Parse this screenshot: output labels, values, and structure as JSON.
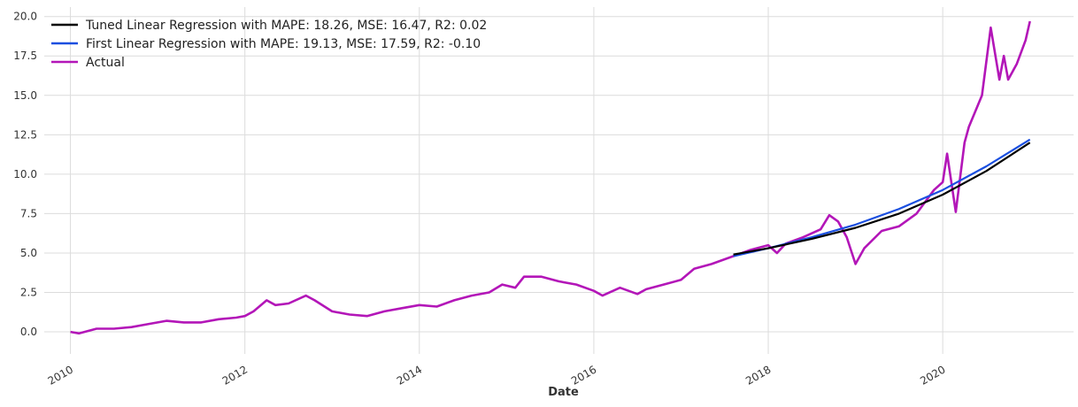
{
  "chart_data": {
    "type": "line",
    "title": "",
    "xlabel": "Date",
    "ylabel": "",
    "grid": true,
    "legend_position": "top-left",
    "xlim": [
      2009.7,
      2021.5
    ],
    "ylim": [
      -1.4,
      20.6
    ],
    "x_ticks": [
      2010,
      2012,
      2014,
      2016,
      2018,
      2020
    ],
    "x_tick_labels": [
      "2010",
      "2012",
      "2014",
      "2016",
      "2018",
      "2020"
    ],
    "y_ticks": [
      0,
      2.5,
      5,
      7.5,
      10,
      12.5,
      15,
      17.5,
      20
    ],
    "y_tick_labels": [
      "0.0",
      "2.5",
      "5.0",
      "7.5",
      "10.0",
      "12.5",
      "15.0",
      "17.5",
      "20.0"
    ],
    "series": [
      {
        "name": "Tuned Linear Regression with MAPE: 18.26, MSE: 16.47, R2: 0.02",
        "color": "#000000",
        "x": [
          2017.6,
          2018.0,
          2018.5,
          2019.0,
          2019.5,
          2020.0,
          2020.5,
          2021.0
        ],
        "y": [
          4.9,
          5.3,
          5.9,
          6.6,
          7.5,
          8.7,
          10.2,
          12.0
        ]
      },
      {
        "name": "First Linear Regression with MAPE: 19.13, MSE: 17.59, R2: -0.10",
        "color": "#1a4fe0",
        "x": [
          2017.6,
          2018.0,
          2018.5,
          2019.0,
          2019.5,
          2020.0,
          2020.5,
          2021.0
        ],
        "y": [
          4.8,
          5.3,
          6.0,
          6.8,
          7.8,
          9.0,
          10.5,
          12.2
        ]
      },
      {
        "name": "Actual",
        "color": "#b316b8",
        "x": [
          2010.0,
          2010.1,
          2010.3,
          2010.5,
          2010.7,
          2010.9,
          2011.1,
          2011.3,
          2011.5,
          2011.7,
          2011.9,
          2012.0,
          2012.1,
          2012.25,
          2012.35,
          2012.5,
          2012.7,
          2012.8,
          2013.0,
          2013.2,
          2013.4,
          2013.6,
          2013.8,
          2014.0,
          2014.2,
          2014.4,
          2014.6,
          2014.8,
          2014.95,
          2015.1,
          2015.2,
          2015.4,
          2015.6,
          2015.8,
          2016.0,
          2016.1,
          2016.3,
          2016.5,
          2016.6,
          2016.8,
          2017.0,
          2017.15,
          2017.35,
          2017.6,
          2017.8,
          2018.0,
          2018.1,
          2018.2,
          2018.4,
          2018.6,
          2018.7,
          2018.8,
          2018.9,
          2019.0,
          2019.1,
          2019.3,
          2019.5,
          2019.7,
          2019.9,
          2020.0,
          2020.05,
          2020.15,
          2020.25,
          2020.3,
          2020.45,
          2020.55,
          2020.65,
          2020.7,
          2020.75,
          2020.85,
          2020.95,
          2021.0
        ],
        "y": [
          0.0,
          -0.1,
          0.2,
          0.2,
          0.3,
          0.5,
          0.7,
          0.6,
          0.6,
          0.8,
          0.9,
          1.0,
          1.3,
          2.0,
          1.7,
          1.8,
          2.3,
          2.0,
          1.3,
          1.1,
          1.0,
          1.3,
          1.5,
          1.7,
          1.6,
          2.0,
          2.3,
          2.5,
          3.0,
          2.8,
          3.5,
          3.5,
          3.2,
          3.0,
          2.6,
          2.3,
          2.8,
          2.4,
          2.7,
          3.0,
          3.3,
          4.0,
          4.3,
          4.8,
          5.2,
          5.5,
          5.0,
          5.6,
          6.0,
          6.5,
          7.4,
          7.0,
          6.0,
          4.3,
          5.3,
          6.4,
          6.7,
          7.5,
          9.0,
          9.5,
          11.3,
          7.6,
          12.0,
          13.0,
          15.0,
          19.3,
          16.0,
          17.5,
          16.0,
          17.0,
          18.5,
          19.7
        ]
      }
    ]
  }
}
